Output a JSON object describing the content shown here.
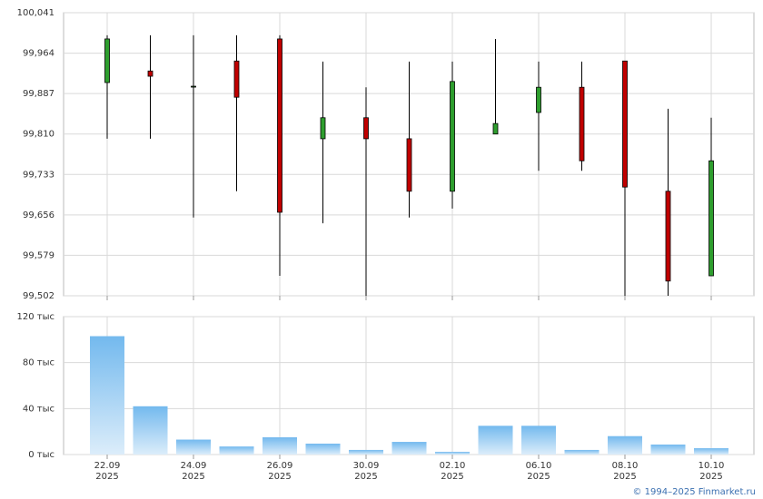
{
  "chart_data": [
    {
      "type": "candlestick",
      "ylim": [
        99.502,
        100.041
      ],
      "yticks": [
        {
          "value": 99.502,
          "label": "99,502"
        },
        {
          "value": 99.579,
          "label": "99,579"
        },
        {
          "value": 99.656,
          "label": "99,656"
        },
        {
          "value": 99.733,
          "label": "99,733"
        },
        {
          "value": 99.81,
          "label": "99,810"
        },
        {
          "value": 99.887,
          "label": "99,887"
        },
        {
          "value": 99.964,
          "label": "99,964"
        },
        {
          "value": 100.041,
          "label": "100,041"
        }
      ],
      "up_color": "#2e9e2e",
      "down_color": "#c00000",
      "grid": true,
      "open": [
        99.908,
        99.93,
        99.901,
        99.949,
        99.991,
        99.801,
        99.841,
        99.801,
        99.701,
        99.81,
        99.851,
        99.899,
        99.949,
        99.701,
        99.54
      ],
      "high": [
        99.998,
        99.998,
        99.998,
        99.998,
        99.998,
        99.948,
        99.899,
        99.948,
        99.948,
        99.991,
        99.948,
        99.948,
        99.949,
        99.858,
        99.841
      ],
      "low": [
        99.801,
        99.801,
        99.651,
        99.701,
        99.54,
        99.64,
        99.502,
        99.651,
        99.668,
        99.81,
        99.74,
        99.74,
        99.502,
        99.502,
        99.54
      ],
      "close": [
        99.991,
        99.92,
        99.901,
        99.88,
        99.661,
        99.841,
        99.801,
        99.701,
        99.91,
        99.83,
        99.899,
        99.759,
        99.709,
        99.53,
        99.759
      ]
    },
    {
      "type": "bar",
      "categories": [
        "22.09",
        null,
        "24.09",
        null,
        "26.09",
        null,
        "30.09",
        null,
        "02.10",
        null,
        "06.10",
        null,
        "08.10",
        null,
        "10.10"
      ],
      "category_years": [
        "2025",
        null,
        "2025",
        null,
        "2025",
        null,
        "2025",
        null,
        "2025",
        null,
        "2025",
        null,
        "2025",
        null,
        "2025"
      ],
      "values": [
        103,
        42,
        13,
        7,
        15,
        9.5,
        4,
        11,
        2.4,
        25,
        25,
        4,
        16,
        8.7,
        5.5
      ],
      "ylim": [
        0,
        120
      ],
      "yticks": [
        {
          "value": 0,
          "label": "0 тыс"
        },
        {
          "value": 40,
          "label": "40 тыс"
        },
        {
          "value": 80,
          "label": "80 тыс"
        },
        {
          "value": 120,
          "label": "120 тыс"
        }
      ],
      "color_top": "#73b9ee",
      "color_bottom": "#dcedfa",
      "grid": true
    }
  ],
  "footer": "© 1994–2025 Finmarket.ru"
}
